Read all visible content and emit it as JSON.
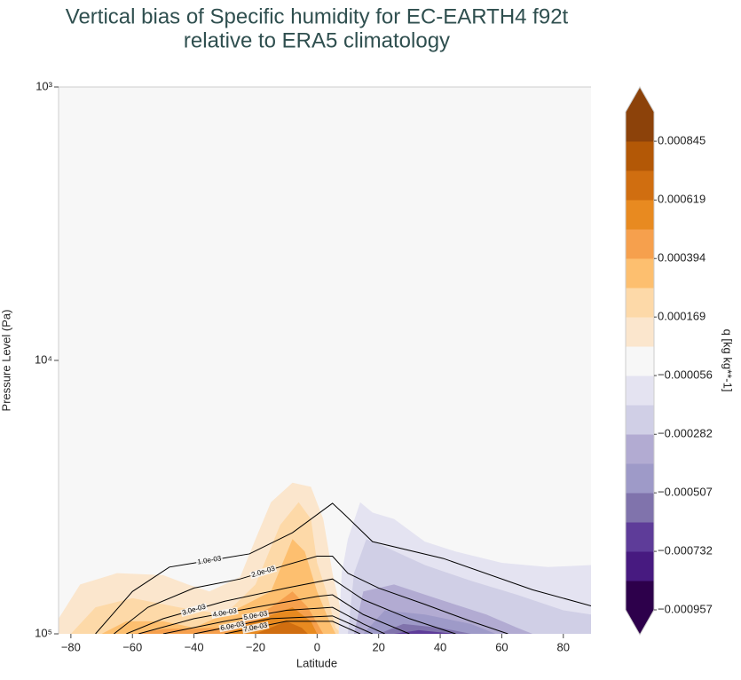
{
  "chart_data": {
    "type": "contourf",
    "title": [
      "Vertical bias of Specific humidity for EC-EARTH4 f92t",
      "relative to ERA5 climatology"
    ],
    "x_label": "Latitude",
    "y_label": "Pressure Level (Pa)",
    "xlim": [
      -84,
      89
    ],
    "ylim": [
      1000,
      100000
    ],
    "y_log": true,
    "y_inverted": true,
    "xticks": [
      {
        "value": -80,
        "label": "−80"
      },
      {
        "value": -60,
        "label": "−60"
      },
      {
        "value": -40,
        "label": "−40"
      },
      {
        "value": -20,
        "label": "−20"
      },
      0,
      20,
      40,
      60,
      80
    ],
    "yticks": [
      {
        "value": 1000,
        "label": "10³"
      },
      {
        "value": 10000,
        "label": "10⁴"
      },
      {
        "value": 100000,
        "label": "10⁵"
      }
    ],
    "background": "#f7f7f7",
    "regions": [
      {
        "color": "#fbe6cd",
        "lat": [
          -84,
          -84,
          -77,
          -65,
          -50,
          -42,
          -35,
          -25,
          -20,
          -15,
          -8,
          -2,
          2,
          5,
          8,
          10
        ],
        "p": [
          100000,
          88000,
          66000,
          60000,
          61000,
          66000,
          70000,
          62000,
          45000,
          33000,
          28000,
          29000,
          38000,
          60000,
          85000,
          100000
        ]
      },
      {
        "color": "#fdd9a8",
        "lat": [
          -80,
          -72,
          -60,
          -45,
          -30,
          -20,
          -12,
          -6,
          -2,
          0,
          3,
          6,
          8
        ],
        "p": [
          100000,
          80000,
          74000,
          80000,
          85000,
          66000,
          40000,
          33000,
          38000,
          55000,
          70000,
          95000,
          100000
        ]
      },
      {
        "color": "#fdbf6f",
        "lat": [
          -70,
          -62,
          -50,
          -40,
          -25,
          -15,
          -8,
          -4,
          0,
          4,
          6
        ],
        "p": [
          100000,
          90000,
          90000,
          95000,
          80000,
          70000,
          45000,
          50000,
          70000,
          90000,
          100000
        ]
      },
      {
        "color": "#f6a04d",
        "lat": [
          -60,
          -50,
          -30,
          -15,
          -8,
          -3,
          2
        ],
        "p": [
          100000,
          96000,
          95000,
          80000,
          70000,
          80000,
          100000
        ]
      },
      {
        "color": "#e88a20",
        "lat": [
          -30,
          -18,
          -8,
          -2,
          0
        ],
        "p": [
          100000,
          88000,
          80000,
          90000,
          100000
        ]
      },
      {
        "color": "#d06e10",
        "lat": [
          -20,
          -10,
          -5,
          -3
        ],
        "p": [
          100000,
          90000,
          95000,
          100000
        ]
      },
      {
        "color": "#e4e3f1",
        "lat": [
          7,
          8,
          10,
          14,
          18,
          25,
          35,
          45,
          60,
          75,
          89,
          89
        ],
        "p": [
          100000,
          60000,
          45000,
          33000,
          36000,
          38000,
          46000,
          50000,
          55000,
          57000,
          56000,
          100000
        ]
      },
      {
        "color": "#d0cfe6",
        "lat": [
          10,
          12,
          16,
          22,
          35,
          50,
          65,
          80,
          89,
          89
        ],
        "p": [
          100000,
          60000,
          45000,
          48000,
          56000,
          64000,
          72000,
          82000,
          85000,
          100000
        ]
      },
      {
        "color": "#b2abd2",
        "lat": [
          12,
          15,
          25,
          40,
          55,
          65,
          70
        ],
        "p": [
          100000,
          70000,
          66000,
          75000,
          85000,
          95000,
          100000
        ]
      },
      {
        "color": "#9e9ac8",
        "lat": [
          15,
          22,
          35,
          50,
          58
        ],
        "p": [
          100000,
          82000,
          85000,
          92000,
          100000
        ]
      },
      {
        "color": "#8073ac",
        "lat": [
          20,
          28,
          40,
          50
        ],
        "p": [
          100000,
          92000,
          95000,
          100000
        ]
      },
      {
        "color": "#5e3c99",
        "lat": [
          25,
          33,
          45
        ],
        "p": [
          100000,
          97000,
          100000
        ]
      }
    ],
    "contours": [
      {
        "label": "1.0e-03",
        "lat": [
          -72,
          -60,
          -48,
          -22,
          -8,
          5,
          9,
          18,
          41,
          70,
          89
        ],
        "p": [
          100000,
          70000,
          57000,
          51000,
          42650,
          33300,
          36700,
          46000,
          53000,
          69000,
          79000
        ]
      },
      {
        "label": "2.0e-03",
        "lat": [
          -66,
          -55,
          -40,
          -25,
          -10,
          0,
          5,
          10,
          20,
          35,
          50,
          62
        ],
        "p": [
          100000,
          80000,
          68000,
          63000,
          56000,
          52000,
          52000,
          60000,
          68000,
          78000,
          90000,
          100000
        ]
      },
      {
        "label": "3.0e-03",
        "lat": [
          -62,
          -50,
          -30,
          -10,
          5,
          15,
          30,
          45
        ],
        "p": [
          100000,
          88000,
          76000,
          68000,
          63000,
          75000,
          88000,
          100000
        ]
      },
      {
        "label": "4.0e-03",
        "lat": [
          -58,
          -40,
          -20,
          0,
          5,
          15,
          30
        ],
        "p": [
          100000,
          88000,
          80000,
          73000,
          72000,
          85000,
          100000
        ]
      },
      {
        "label": "5.0e-03",
        "lat": [
          -50,
          -30,
          -10,
          5,
          15,
          22
        ],
        "p": [
          100000,
          90000,
          82000,
          80000,
          92000,
          100000
        ]
      },
      {
        "label": "6.0e-03",
        "lat": [
          -40,
          -15,
          5,
          18
        ],
        "p": [
          100000,
          88000,
          86000,
          100000
        ]
      },
      {
        "label": "7.0e-03",
        "lat": [
          -30,
          -10,
          5,
          14
        ],
        "p": [
          100000,
          90000,
          90000,
          100000
        ]
      }
    ],
    "colorbar": {
      "label": "q [kg kg**-1]",
      "lim": [
        -0.000957,
        0.000958
      ],
      "colors": [
        "#2d004b",
        "#471a80",
        "#5e3c99",
        "#8073ac",
        "#9e9ac8",
        "#b2abd2",
        "#d0cfe6",
        "#e4e3f1",
        "#f7f7f7",
        "#fbe6cd",
        "#fdd9a8",
        "#fdbf6f",
        "#f6a04d",
        "#e88a20",
        "#d06e10",
        "#b35806",
        "#8c420a"
      ],
      "ticks": [
        {
          "value": -0.000957,
          "label": "−0.000957"
        },
        {
          "value": -0.000732,
          "label": "−0.000732"
        },
        {
          "value": -0.000507,
          "label": "−0.000507"
        },
        {
          "value": -0.000282,
          "label": "−0.000282"
        },
        {
          "value": -5.6e-05,
          "label": "−0.000056"
        },
        0.000169,
        0.000394,
        0.000619,
        0.000845
      ]
    }
  }
}
